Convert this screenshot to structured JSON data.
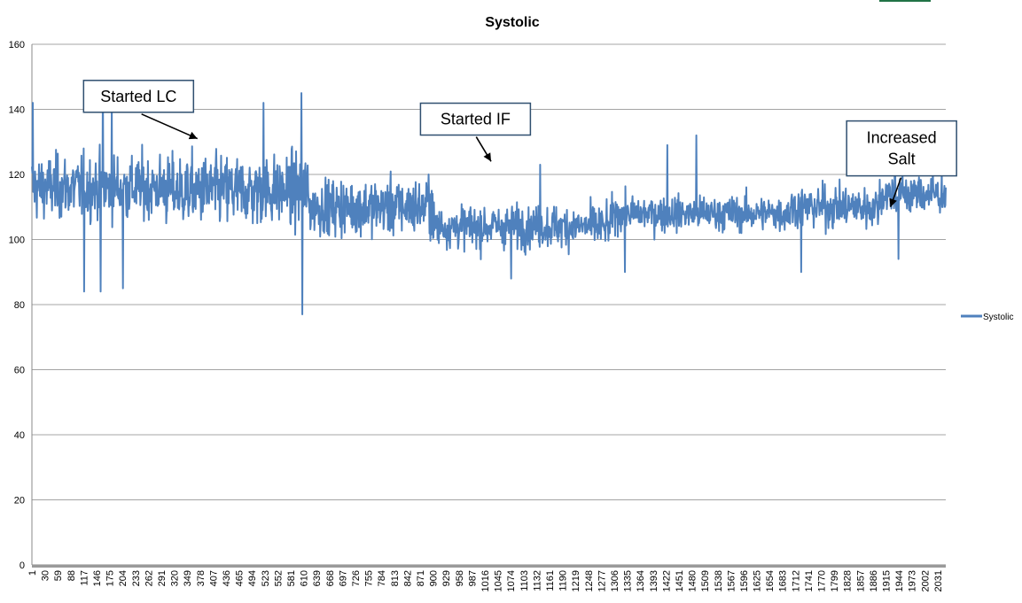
{
  "chart_data": {
    "type": "line",
    "title": "Systolic",
    "xlabel": "",
    "ylabel": "",
    "ylim": [
      0,
      160
    ],
    "yticks": [
      0,
      20,
      40,
      60,
      80,
      100,
      120,
      140,
      160
    ],
    "xlim": [
      1,
      2049
    ],
    "xtick_labels": [
      "1",
      "30",
      "59",
      "88",
      "117",
      "146",
      "175",
      "204",
      "233",
      "262",
      "291",
      "320",
      "349",
      "378",
      "407",
      "436",
      "465",
      "494",
      "523",
      "552",
      "581",
      "610",
      "639",
      "668",
      "697",
      "726",
      "755",
      "784",
      "813",
      "842",
      "871",
      "900",
      "929",
      "958",
      "987",
      "1016",
      "1045",
      "1074",
      "1103",
      "1132",
      "1161",
      "1190",
      "1219",
      "1248",
      "1277",
      "1306",
      "1335",
      "1364",
      "1393",
      "1422",
      "1451",
      "1480",
      "1509",
      "1538",
      "1567",
      "1596",
      "1625",
      "1654",
      "1683",
      "1712",
      "1741",
      "1770",
      "1799",
      "1828",
      "1857",
      "1886",
      "1915",
      "1944",
      "1973",
      "2002",
      "2031"
    ],
    "grid": true,
    "legend_position": "right",
    "series": [
      {
        "name": "Systolic",
        "color": "#4F81BD",
        "n_points": 2049,
        "key_points": [
          {
            "x": 3,
            "y": 142
          },
          {
            "x": 118,
            "y": 84
          },
          {
            "x": 155,
            "y": 84
          },
          {
            "x": 160,
            "y": 148
          },
          {
            "x": 180,
            "y": 142
          },
          {
            "x": 205,
            "y": 85
          },
          {
            "x": 520,
            "y": 142
          },
          {
            "x": 605,
            "y": 145
          },
          {
            "x": 607,
            "y": 77
          },
          {
            "x": 890,
            "y": 120
          },
          {
            "x": 1005,
            "y": 97
          },
          {
            "x": 1075,
            "y": 88
          },
          {
            "x": 1140,
            "y": 123
          },
          {
            "x": 1330,
            "y": 90
          },
          {
            "x": 1425,
            "y": 129
          },
          {
            "x": 1490,
            "y": 132
          },
          {
            "x": 1725,
            "y": 90
          },
          {
            "x": 1935,
            "y": 133
          },
          {
            "x": 1943,
            "y": 94
          },
          {
            "x": 2049,
            "y": 116
          }
        ],
        "segments": [
          {
            "x_start": 1,
            "x_end": 300,
            "mean": 116,
            "spread": 9
          },
          {
            "x_start": 300,
            "x_end": 620,
            "mean": 115,
            "spread": 10
          },
          {
            "x_start": 620,
            "x_end": 900,
            "mean": 110,
            "spread": 8
          },
          {
            "x_start": 900,
            "x_end": 1300,
            "mean": 104,
            "spread": 6
          },
          {
            "x_start": 1300,
            "x_end": 1700,
            "mean": 108,
            "spread": 5
          },
          {
            "x_start": 1700,
            "x_end": 1900,
            "mean": 110,
            "spread": 6
          },
          {
            "x_start": 1900,
            "x_end": 2049,
            "mean": 114,
            "spread": 6
          }
        ]
      }
    ],
    "annotations": [
      {
        "text": [
          "Started LC"
        ],
        "box_x": 240,
        "box_y": 144,
        "arrow_x": 372,
        "arrow_y": 131
      },
      {
        "text": [
          "Started IF"
        ],
        "box_x": 995,
        "box_y": 137,
        "arrow_x": 1030,
        "arrow_y": 124
      },
      {
        "text": [
          "Increased",
          "Salt"
        ],
        "box_x": 1950,
        "box_y": 128,
        "arrow_x": 1925,
        "arrow_y": 110
      }
    ]
  }
}
